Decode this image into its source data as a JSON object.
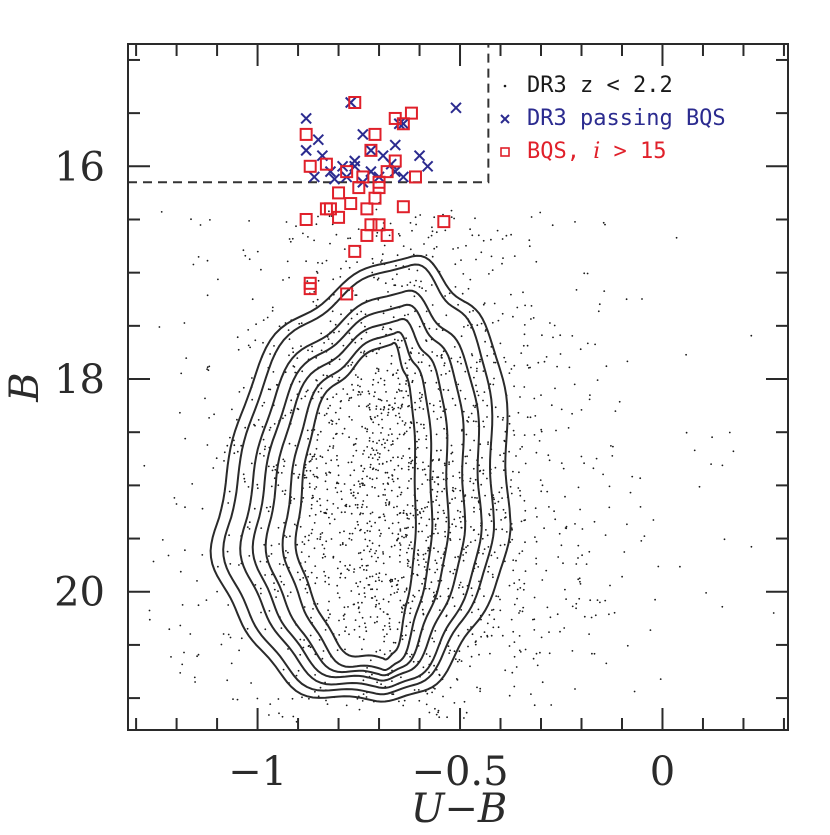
{
  "chart_data": {
    "type": "scatter",
    "xlabel": "U−B",
    "ylabel": "B",
    "xlim": [
      -1.32,
      0.31
    ],
    "ylim": [
      21.3,
      14.85
    ],
    "y_inverted": true,
    "x_ticks": [
      -1,
      -0.5,
      0
    ],
    "x_tick_labels": [
      "−1",
      "−0.5",
      "0"
    ],
    "y_ticks": [
      16,
      18,
      20
    ],
    "y_tick_labels": [
      "16",
      "18",
      "20"
    ],
    "grid": false,
    "legend_position": "top-right",
    "legend": [
      {
        "key": "dr3",
        "marker": "dot",
        "color": "#1a1a1a",
        "parts": [
          {
            "text": "DR3 z < 2.2",
            "italic": false
          }
        ]
      },
      {
        "key": "dr3bqs",
        "marker": "cross",
        "color": "#2b2b8f",
        "parts": [
          {
            "text": "DR3 passing BQS",
            "italic": false
          }
        ]
      },
      {
        "key": "bqs",
        "marker": "square",
        "color": "#e0202a",
        "parts": [
          {
            "text": "BQS, ",
            "italic": false
          },
          {
            "text": "i",
            "italic": true
          },
          {
            "text": " > 15",
            "italic": false
          }
        ]
      }
    ],
    "selection_box": {
      "x_max": -0.43,
      "y_max": 16.15,
      "style": "dashed"
    },
    "contours": {
      "center": [
        -0.68,
        19.3
      ],
      "levels": [
        {
          "rx": [
            0.22,
            0.07
          ],
          "ry": [
            1.6,
            1.35
          ],
          "tilt": 0.02
        },
        {
          "rx": [
            0.25,
            0.11
          ],
          "ry": [
            1.7,
            1.45
          ],
          "tilt": 0.03
        },
        {
          "rx": [
            0.29,
            0.15
          ],
          "ry": [
            1.82,
            1.5
          ],
          "tilt": 0.04
        },
        {
          "rx": [
            0.32,
            0.19
          ],
          "ry": [
            1.95,
            1.55
          ],
          "tilt": 0.05
        },
        {
          "rx": [
            0.35,
            0.23
          ],
          "ry": [
            2.08,
            1.62
          ],
          "tilt": 0.05
        },
        {
          "rx": [
            0.39,
            0.26
          ],
          "ry": [
            2.32,
            1.68
          ],
          "tilt": 0.06
        },
        {
          "rx": [
            0.42,
            0.3
          ],
          "ry": [
            2.4,
            1.75
          ],
          "tilt": 0.06
        }
      ]
    },
    "series": [
      {
        "name": "DR3 passing BQS",
        "marker": "cross",
        "color": "#2b2b8f",
        "points": [
          [
            -0.88,
            15.55
          ],
          [
            -0.77,
            15.4
          ],
          [
            -0.65,
            15.6
          ],
          [
            -0.51,
            15.45
          ],
          [
            -0.85,
            15.75
          ],
          [
            -0.74,
            15.7
          ],
          [
            -0.64,
            15.6
          ],
          [
            -0.88,
            15.85
          ],
          [
            -0.84,
            15.9
          ],
          [
            -0.79,
            16.0
          ],
          [
            -0.76,
            15.95
          ],
          [
            -0.72,
            15.85
          ],
          [
            -0.69,
            15.9
          ],
          [
            -0.66,
            15.8
          ],
          [
            -0.6,
            15.9
          ],
          [
            -0.58,
            16.0
          ],
          [
            -0.86,
            16.1
          ],
          [
            -0.82,
            16.05
          ],
          [
            -0.78,
            16.1
          ],
          [
            -0.74,
            16.15
          ],
          [
            -0.7,
            16.1
          ],
          [
            -0.66,
            16.05
          ],
          [
            -0.64,
            16.1
          ],
          [
            -0.81,
            16.12
          ],
          [
            -0.76,
            16.0
          ],
          [
            -0.72,
            16.05
          ],
          [
            -0.67,
            15.98
          ]
        ]
      },
      {
        "name": "BQS, i > 15",
        "marker": "square",
        "color": "#e0202a",
        "points": [
          [
            -0.76,
            15.4
          ],
          [
            -0.66,
            15.55
          ],
          [
            -0.62,
            15.5
          ],
          [
            -0.88,
            15.7
          ],
          [
            -0.71,
            15.7
          ],
          [
            -0.64,
            15.6
          ],
          [
            -0.72,
            15.85
          ],
          [
            -0.87,
            16.0
          ],
          [
            -0.83,
            15.98
          ],
          [
            -0.78,
            16.05
          ],
          [
            -0.74,
            16.1
          ],
          [
            -0.7,
            16.15
          ],
          [
            -0.66,
            15.95
          ],
          [
            -0.61,
            16.1
          ],
          [
            -0.8,
            16.25
          ],
          [
            -0.75,
            16.2
          ],
          [
            -0.7,
            16.2
          ],
          [
            -0.68,
            16.05
          ],
          [
            -0.83,
            16.4
          ],
          [
            -0.77,
            16.35
          ],
          [
            -0.73,
            16.4
          ],
          [
            -0.71,
            16.3
          ],
          [
            -0.64,
            16.38
          ],
          [
            -0.88,
            16.5
          ],
          [
            -0.8,
            16.48
          ],
          [
            -0.72,
            16.55
          ],
          [
            -0.7,
            16.55
          ],
          [
            -0.73,
            16.65
          ],
          [
            -0.68,
            16.65
          ],
          [
            -0.54,
            16.52
          ],
          [
            -0.76,
            16.8
          ],
          [
            -0.87,
            17.1
          ],
          [
            -0.87,
            17.15
          ],
          [
            -0.78,
            17.2
          ],
          [
            -0.82,
            16.4
          ]
        ]
      }
    ]
  }
}
